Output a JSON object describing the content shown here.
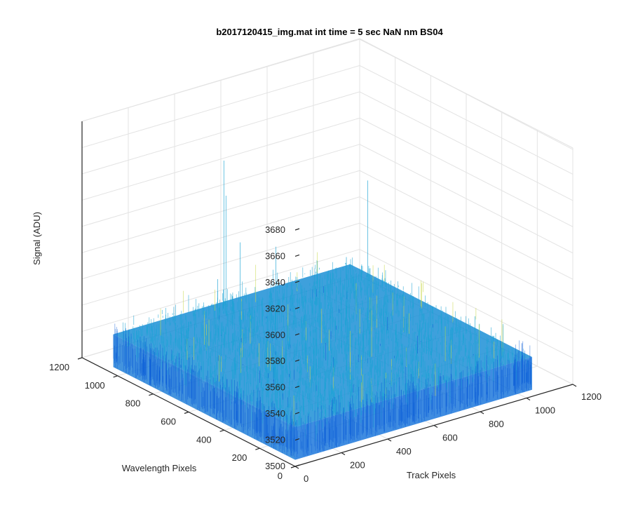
{
  "chart_data": {
    "type": "surface",
    "title": "b2017120415_img.mat int time = 5 sec  NaN nm BS04",
    "zlabel": "Signal (ADU)",
    "xlabel": "Track Pixels",
    "ylabel": "Wavelength Pixels",
    "z_ticks": [
      "3500",
      "3520",
      "3540",
      "3560",
      "3580",
      "3600",
      "3620",
      "3640",
      "3660",
      "3680"
    ],
    "x_ticks": [
      "0",
      "200",
      "400",
      "600",
      "800",
      "1000",
      "1200"
    ],
    "y_ticks": [
      "0",
      "200",
      "400",
      "600",
      "800",
      "1000",
      "1200"
    ],
    "xlim": [
      0,
      1200
    ],
    "ylim": [
      0,
      1200
    ],
    "zlim": [
      3500,
      3680
    ],
    "x_range": [
      0,
      1024
    ],
    "y_range": [
      0,
      1024
    ],
    "z_mean": 3530,
    "z_spread": [
      3505,
      3560
    ],
    "z_outlier_max": 3655,
    "colormap": "parula",
    "colors": {
      "low": "#0d5fd8",
      "mid": "#1aa3d4",
      "high": "#c8d84a"
    },
    "grid": true,
    "view": "3d"
  }
}
